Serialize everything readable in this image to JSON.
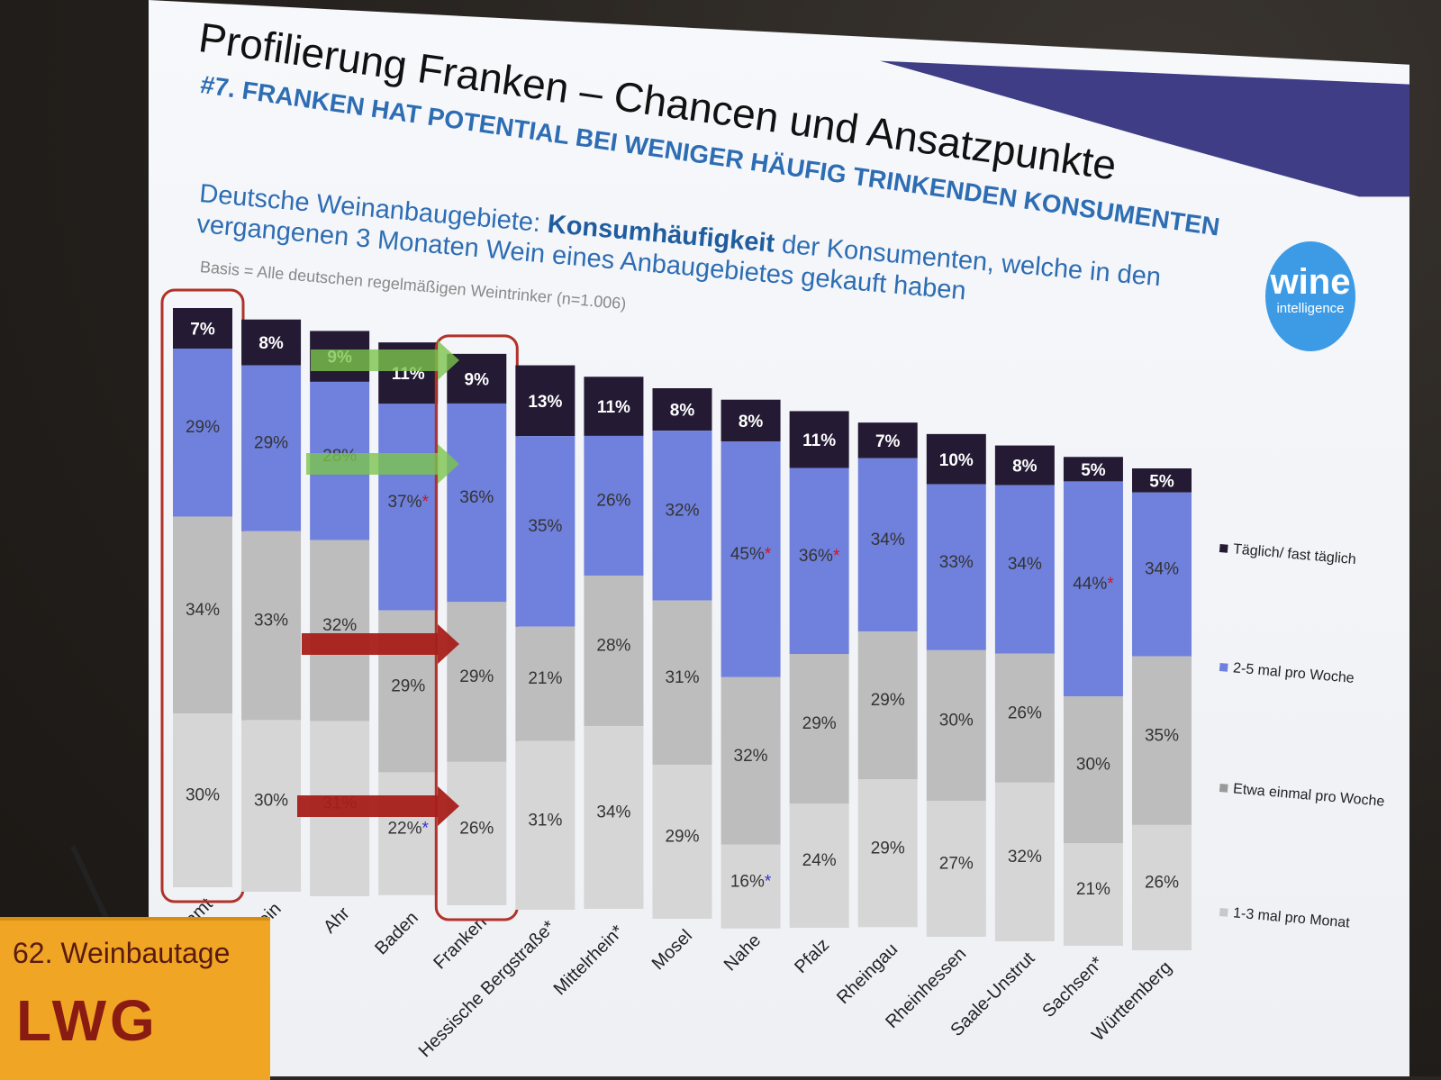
{
  "title": "Profilierung Franken – Chancen und Ansatzpunkte",
  "subtitle": "#7. FRANKEN HAT POTENTIAL BEI WENIGER HÄUFIG TRINKENDEN KONSUMENTEN",
  "heading": {
    "prefix": "Deutsche Weinanbaugebiete: ",
    "bold": "Konsumhäufigkeit",
    "suffix": " der Konsumenten, welche in den vergangenen 3 Monaten Wein eines Anbaugebietes gekauft haben"
  },
  "basis": "Basis = Alle  deutschen regelmäßigen Weintrinker (n=1.006)",
  "logo": {
    "word": "wine",
    "sub": "intelligence"
  },
  "colors": {
    "taeglich": "#241a33",
    "woche25": "#6f80dd",
    "einmal": "#bdbdbd",
    "monat": "#d6d6d6",
    "highlight": "#b0332a",
    "arrow_green": "#7cc44e",
    "arrow_red": "#a81f1a"
  },
  "chart_data": {
    "type": "bar",
    "stacked": true,
    "percent": true,
    "categories": [
      "Gesamt",
      "Wein",
      "Ahr",
      "Baden",
      "Franken",
      "Hessische Bergstraße*",
      "Mittelrhein*",
      "Mosel",
      "Nahe",
      "Pfalz",
      "Rheingau",
      "Rheinhessen",
      "Saale-Unstrut",
      "Sachsen*",
      "Württemberg"
    ],
    "series": [
      {
        "name": "Täglich/ fast täglich",
        "values": [
          7,
          8,
          9,
          11,
          9,
          13,
          11,
          8,
          8,
          11,
          7,
          10,
          8,
          5,
          5
        ]
      },
      {
        "name": "2-5 mal pro Woche",
        "values": [
          29,
          29,
          28,
          37,
          36,
          35,
          26,
          32,
          45,
          36,
          34,
          33,
          34,
          44,
          34
        ]
      },
      {
        "name": "Etwa einmal pro Woche",
        "values": [
          34,
          33,
          32,
          29,
          29,
          21,
          28,
          31,
          32,
          29,
          29,
          30,
          26,
          30,
          35
        ]
      },
      {
        "name": "1-3 mal pro Monat",
        "values": [
          30,
          30,
          31,
          22,
          26,
          31,
          34,
          29,
          16,
          24,
          29,
          27,
          32,
          21,
          26
        ]
      }
    ],
    "significance_marks": [
      {
        "category": "Baden",
        "series": "2-5 mal pro Woche",
        "mark": "*"
      },
      {
        "category": "Baden",
        "series": "1-3 mal pro Monat",
        "mark": "*"
      },
      {
        "category": "Nahe",
        "series": "2-5 mal pro Woche",
        "mark": "*"
      },
      {
        "category": "Nahe",
        "series": "1-3 mal pro Monat",
        "mark": "*"
      },
      {
        "category": "Pfalz",
        "series": "2-5 mal pro Woche",
        "mark": "*"
      },
      {
        "category": "Sachsen*",
        "series": "2-5 mal pro Woche",
        "mark": "*"
      }
    ],
    "highlighted_categories": [
      "Gesamt",
      "Franken"
    ],
    "legend_position": "right",
    "ylim": [
      0,
      100
    ]
  },
  "podium": {
    "event": "62. Weinbautage",
    "logo_text": "LWG"
  }
}
